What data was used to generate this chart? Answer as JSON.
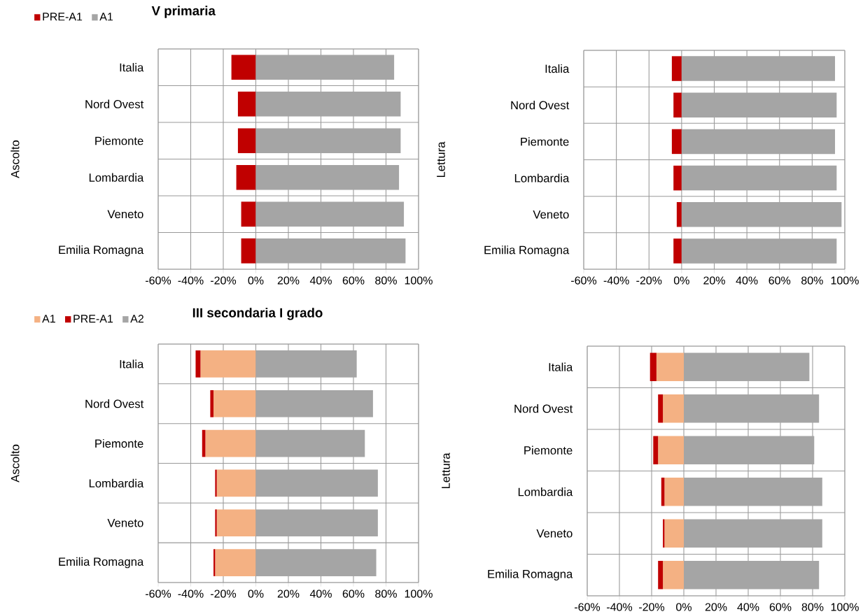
{
  "chart_data": [
    {
      "type": "bar",
      "orientation": "horizontal",
      "stacked": true,
      "title": "V primaria",
      "ylabel": "Ascolto",
      "legend": "top left",
      "grid": true,
      "categories": [
        "Italia",
        "Nord Ovest",
        "Piemonte",
        "Lombardia",
        "Veneto",
        "Emilia Romagna"
      ],
      "xlim": [
        -60,
        100
      ],
      "xticks": [
        {
          "value": -60,
          "label": "-60%"
        },
        {
          "value": -40,
          "label": "-40%"
        },
        {
          "value": -20,
          "label": "-20%"
        },
        {
          "value": 0,
          "label": "0%"
        },
        {
          "value": 20,
          "label": "20%"
        },
        {
          "value": 40,
          "label": "40%"
        },
        {
          "value": 60,
          "label": "60%"
        },
        {
          "value": 80,
          "label": "80%"
        },
        {
          "value": 100,
          "label": "100%"
        }
      ],
      "series": [
        {
          "name": "PRE-A1",
          "color": "#c00000",
          "values": [
            -15,
            -11,
            -11,
            -12,
            -9,
            -9
          ]
        },
        {
          "name": "A1",
          "color": "#a5a5a5",
          "values": [
            85,
            89,
            89,
            88,
            91,
            92
          ]
        }
      ]
    },
    {
      "type": "bar",
      "orientation": "horizontal",
      "stacked": true,
      "ylabel": "Lettura",
      "grid": true,
      "categories": [
        "Italia",
        "Nord Ovest",
        "Piemonte",
        "Lombardia",
        "Veneto",
        "Emilia Romagna"
      ],
      "xlim": [
        -60,
        100
      ],
      "xticks": [
        {
          "value": -60,
          "label": "-60%"
        },
        {
          "value": -40,
          "label": "-40%"
        },
        {
          "value": -20,
          "label": "-20%"
        },
        {
          "value": 0,
          "label": "0%"
        },
        {
          "value": 20,
          "label": "20%"
        },
        {
          "value": 40,
          "label": "40%"
        },
        {
          "value": 60,
          "label": "60%"
        },
        {
          "value": 80,
          "label": "80%"
        },
        {
          "value": 100,
          "label": "100%"
        }
      ],
      "series": [
        {
          "color": "#c00000",
          "values": [
            -6,
            -5,
            -6,
            -5,
            -3,
            -5
          ]
        },
        {
          "color": "#a5a5a5",
          "values": [
            94,
            95,
            94,
            95,
            98,
            95
          ]
        }
      ]
    },
    {
      "type": "bar",
      "orientation": "horizontal",
      "stacked": true,
      "title": "III secondaria I grado",
      "ylabel": "Ascolto",
      "legend": "top left",
      "grid": true,
      "categories": [
        "Italia",
        "Nord Ovest",
        "Piemonte",
        "Lombardia",
        "Veneto",
        "Emilia Romagna"
      ],
      "xlim": [
        -60,
        100
      ],
      "xticks": [
        {
          "value": -60,
          "label": "-60%"
        },
        {
          "value": -40,
          "label": "-40%"
        },
        {
          "value": -20,
          "label": "-20%"
        },
        {
          "value": 0,
          "label": "0%"
        },
        {
          "value": 20,
          "label": "20%"
        },
        {
          "value": 40,
          "label": "40%"
        },
        {
          "value": 60,
          "label": "60%"
        },
        {
          "value": 80,
          "label": "80%"
        },
        {
          "value": 100,
          "label": "100%"
        }
      ],
      "series": [
        {
          "name": "A1",
          "color": "#f4b183",
          "values": [
            -34,
            -26,
            -31,
            -24,
            -24,
            -25
          ]
        },
        {
          "name": "PRE-A1",
          "color": "#c00000",
          "values": [
            -3,
            -2,
            -2,
            -1,
            -1,
            -1
          ]
        },
        {
          "name": "A2",
          "color": "#a5a5a5",
          "values": [
            62,
            72,
            67,
            75,
            75,
            74
          ]
        }
      ]
    },
    {
      "type": "bar",
      "orientation": "horizontal",
      "stacked": true,
      "ylabel": "Lettura",
      "grid": true,
      "categories": [
        "Italia",
        "Nord Ovest",
        "Piemonte",
        "Lombardia",
        "Veneto",
        "Emilia Romagna"
      ],
      "xlim": [
        -60,
        100
      ],
      "xticks": [
        {
          "value": -60,
          "label": "-60%"
        },
        {
          "value": -40,
          "label": "-40%"
        },
        {
          "value": -20,
          "label": "-20%"
        },
        {
          "value": 0,
          "label": "0%"
        },
        {
          "value": 20,
          "label": "20%"
        },
        {
          "value": 40,
          "label": "40%"
        },
        {
          "value": 60,
          "label": "60%"
        },
        {
          "value": 80,
          "label": "80%"
        },
        {
          "value": 100,
          "label": "100%"
        }
      ],
      "series": [
        {
          "color": "#f4b183",
          "values": [
            -17,
            -13,
            -16,
            -12,
            -12,
            -13
          ]
        },
        {
          "color": "#c00000",
          "values": [
            -4,
            -3,
            -3,
            -2,
            -1,
            -3
          ]
        },
        {
          "color": "#a5a5a5",
          "values": [
            78,
            84,
            81,
            86,
            86,
            84
          ]
        }
      ]
    }
  ]
}
